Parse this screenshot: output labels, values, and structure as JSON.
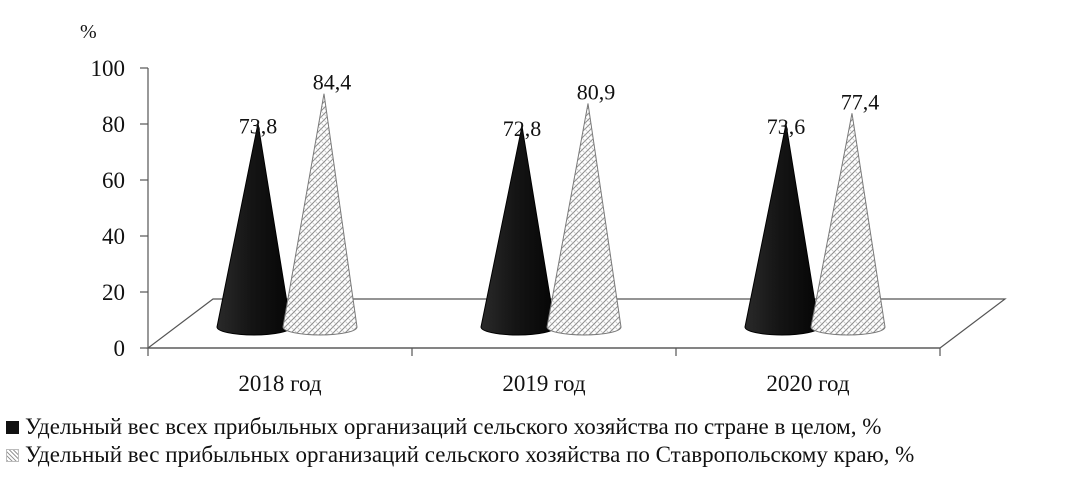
{
  "chart_data": {
    "type": "bar",
    "bar_shape": "cone",
    "unit_label": "%",
    "categories": [
      "2018 год",
      "2019 год",
      "2020 год"
    ],
    "series": [
      {
        "name": "Удельный вес всех прибыльных организаций сельского хозяйства по стране в целом, %",
        "values": [
          73.8,
          72.8,
          73.6
        ],
        "labels": [
          "73,8",
          "72,8",
          "73,6"
        ],
        "color": "#111111"
      },
      {
        "name": "Удельный вес прибыльных организаций сельского хозяйства по Ставропольскому краю, %",
        "values": [
          84.4,
          80.9,
          77.4
        ],
        "labels": [
          "84,4",
          "80,9",
          "77,4"
        ],
        "color": "#bdbdbd"
      }
    ],
    "yticks": [
      "0",
      "20",
      "40",
      "60",
      "80",
      "100"
    ],
    "ylim": [
      0,
      100
    ],
    "grid": false,
    "legend_position": "bottom"
  }
}
